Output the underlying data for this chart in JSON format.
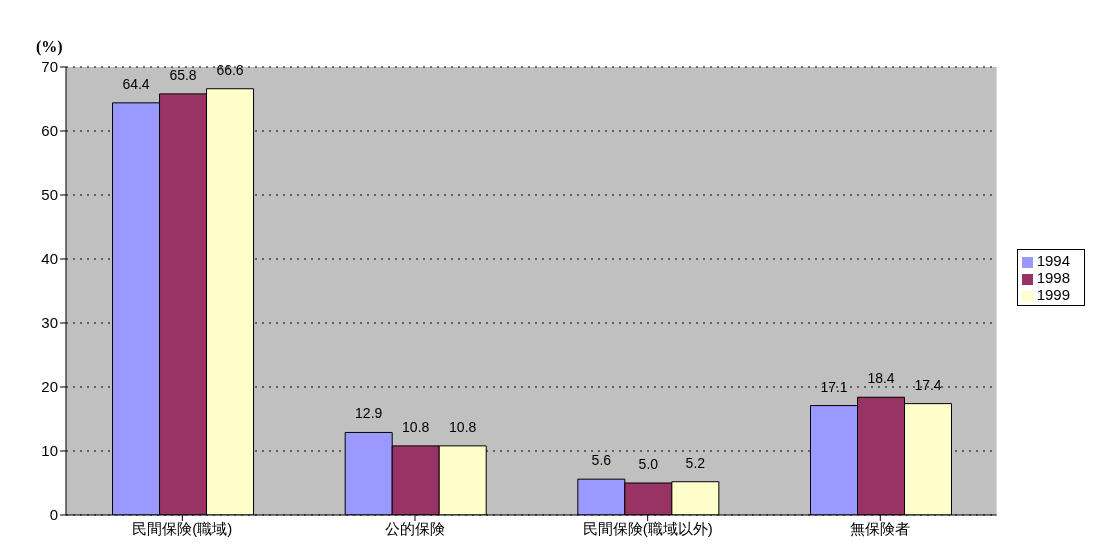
{
  "chart_data": {
    "type": "bar",
    "ylabel": "(%)",
    "categories": [
      "民間保険(職域)",
      "公的保険",
      "民間保険(職域以外)",
      "無保険者"
    ],
    "series": [
      {
        "name": "1994",
        "color": "#9999ff",
        "values": [
          64.4,
          12.9,
          5.6,
          17.1
        ],
        "value_labels": [
          "64.4",
          "12.9",
          "5.6",
          "17.1"
        ]
      },
      {
        "name": "1998",
        "color": "#993366",
        "values": [
          65.8,
          10.8,
          5.0,
          18.4
        ],
        "value_labels": [
          "65.8",
          "10.8",
          "5.0",
          "18.4"
        ]
      },
      {
        "name": "1999",
        "color": "#ffffcc",
        "values": [
          66.6,
          10.8,
          5.2,
          17.4
        ],
        "value_labels": [
          "66.6",
          "10.8",
          "5.2",
          "17.4"
        ]
      }
    ],
    "ylim": [
      0,
      70
    ],
    "yticks": [
      0,
      10,
      20,
      30,
      40,
      50,
      60,
      70
    ],
    "grid": "y",
    "legend": "right"
  }
}
